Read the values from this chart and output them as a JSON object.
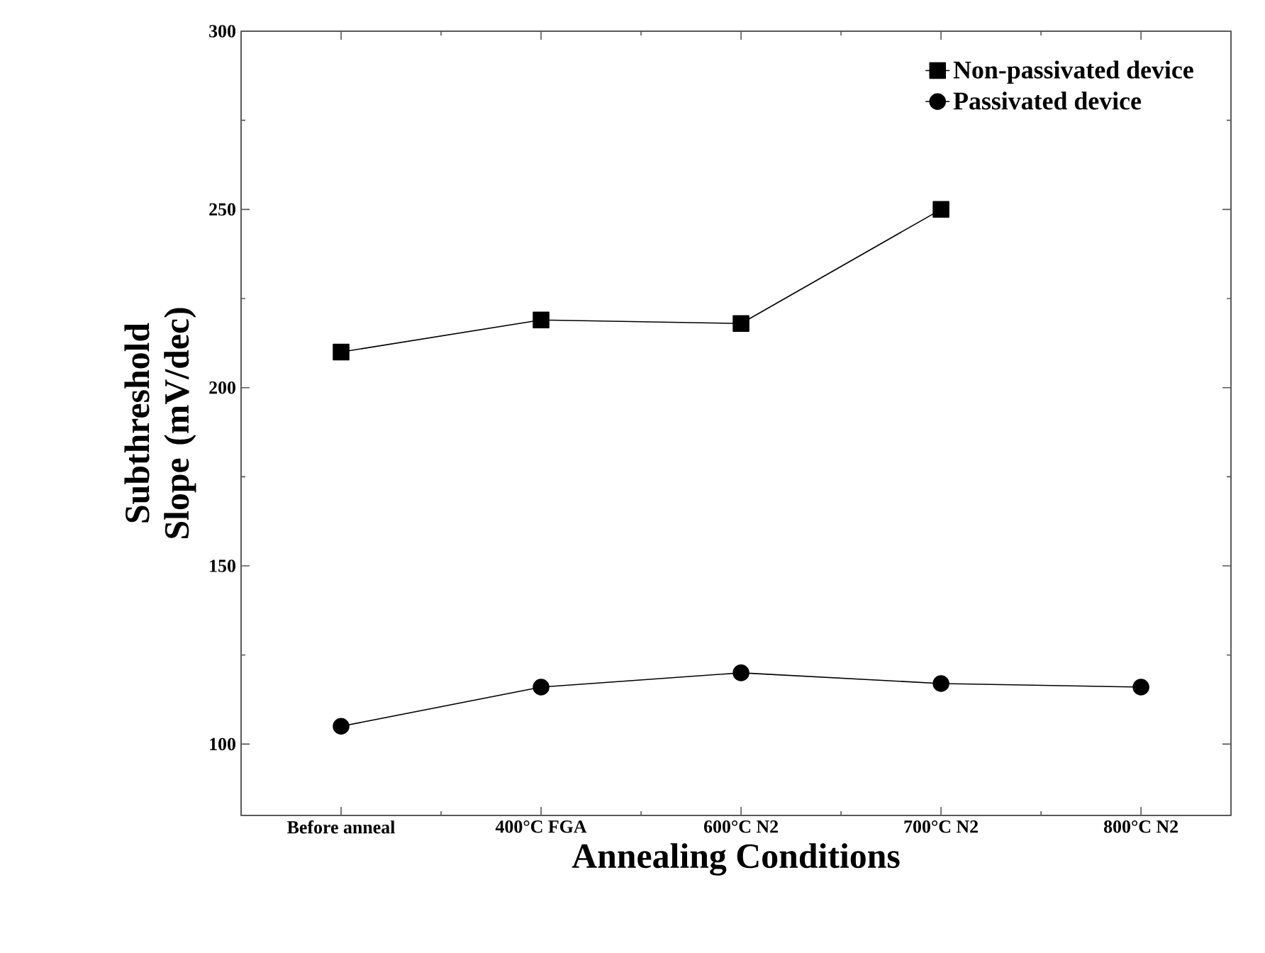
{
  "chart_data": {
    "type": "line",
    "xlabel": "Annealing Conditions",
    "ylabel": "Subthreshold Slope (mV/dec)",
    "categories": [
      "Before anneal",
      "400°C FGA",
      "600°C N2",
      "700°C N2",
      "800°C N2"
    ],
    "series": [
      {
        "name": "Non-passivated device",
        "color": "#000000",
        "marker": "square",
        "values": [
          210,
          219,
          218,
          250,
          null
        ]
      },
      {
        "name": "Passivated device",
        "color": "#000000",
        "marker": "circle",
        "values": [
          105,
          116,
          120,
          117,
          116
        ]
      }
    ],
    "ylim": [
      80,
      300
    ],
    "yticks": [
      100,
      150,
      200,
      250,
      300
    ],
    "legend": "top right",
    "grid": false,
    "line_style": "solid"
  }
}
